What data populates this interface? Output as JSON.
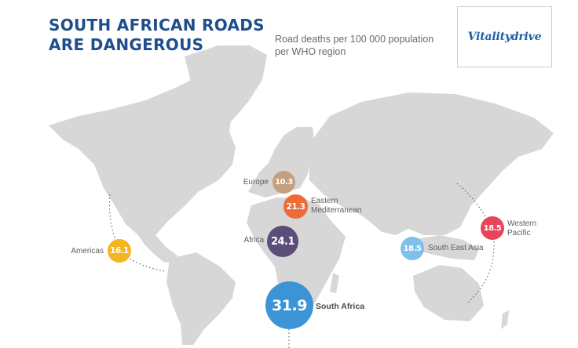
{
  "title_lines": [
    "SOUTH AFRICAN ROADS",
    "ARE DANGEROUS"
  ],
  "subtitle_lines": [
    "Road deaths per 100 000 population",
    "per WHO region"
  ],
  "logo_text": "Vitalitydrive",
  "regions": [
    {
      "name_lines": [
        "Europe"
      ],
      "value": "10.3",
      "color": "#c4a07e"
    },
    {
      "name_lines": [
        "Eastern",
        "Mediterranean"
      ],
      "value": "21.3",
      "color": "#ee6b35"
    },
    {
      "name_lines": [
        "Africa"
      ],
      "value": "24.1",
      "color": "#5a4d78"
    },
    {
      "name_lines": [
        "Americas"
      ],
      "value": "16.1",
      "color": "#f3b520"
    },
    {
      "name_lines": [
        "South East Asia"
      ],
      "value": "18.5",
      "color": "#7ec0ea"
    },
    {
      "name_lines": [
        "Western",
        "Pacific"
      ],
      "value": "18.5",
      "color": "#e8445a"
    },
    {
      "name_lines": [
        "South Africa"
      ],
      "value": "31.9",
      "color": "#3b94d6"
    }
  ],
  "colors": {
    "land": "#d7d7d7",
    "title": "#1f4e8c",
    "dotted_line": "#555555"
  }
}
